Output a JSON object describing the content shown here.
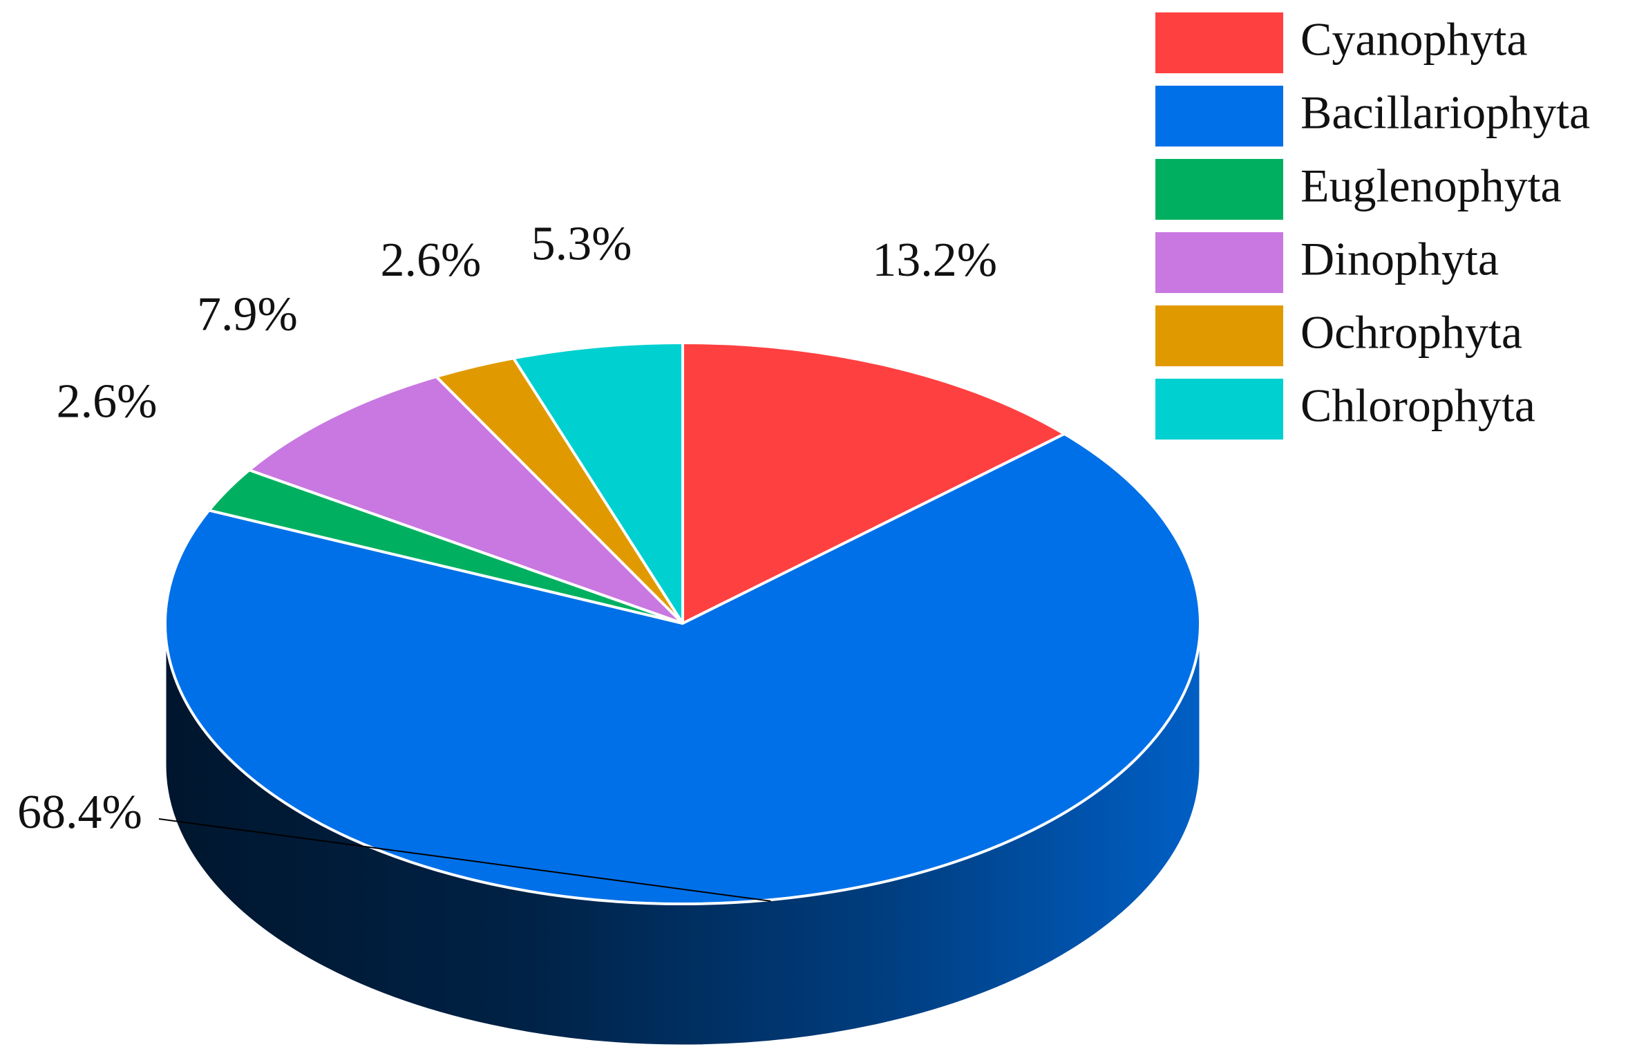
{
  "chart_data": {
    "type": "pie",
    "categories": [
      "Cyanophyta",
      "Bacillariophyta",
      "Euglenophyta",
      "Dinophyta",
      "Ochrophyta",
      "Chlorophyta"
    ],
    "values": [
      13.2,
      68.4,
      2.6,
      7.9,
      2.6,
      5.3
    ],
    "value_labels": [
      "13.2%",
      "68.4%",
      "2.6%",
      "7.9%",
      "2.6%",
      "5.3%"
    ],
    "colors": [
      "#ff4040",
      "#0070e8",
      "#00b060",
      "#c878e0",
      "#e09a00",
      "#00d0d0"
    ],
    "legend": "top-right"
  }
}
